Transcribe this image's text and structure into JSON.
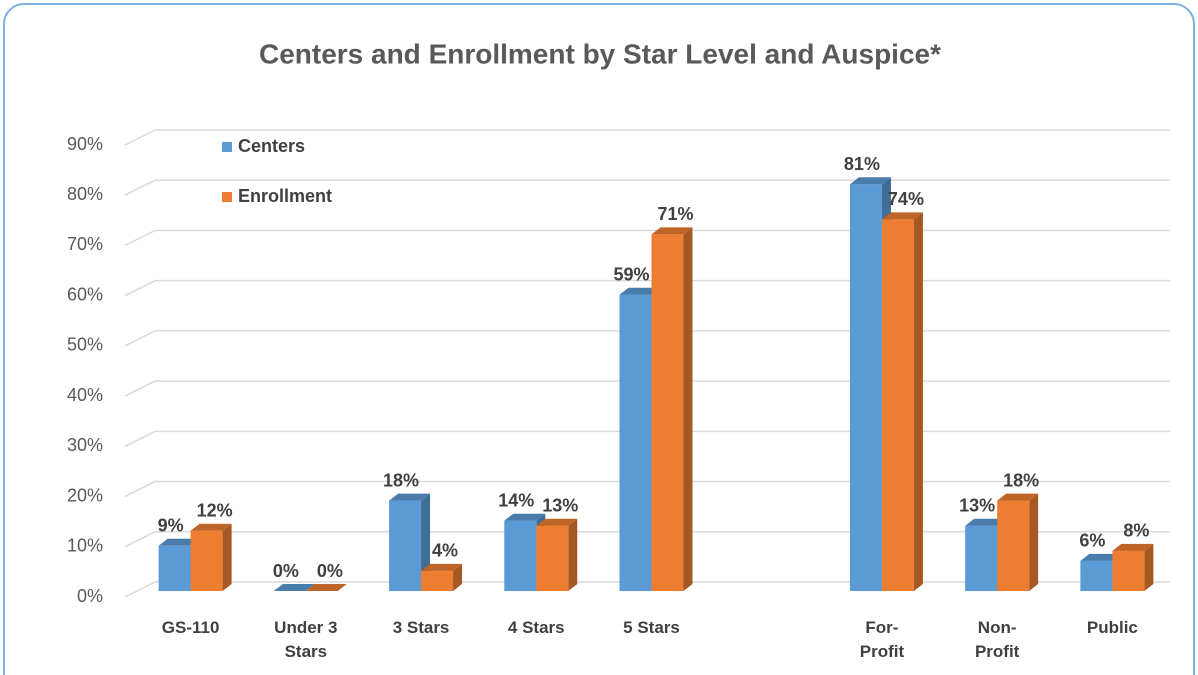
{
  "chart_data": {
    "type": "bar",
    "title": "Centers and Enrollment by Star Level and Auspice*",
    "categories": [
      "GS-110",
      "Under 3 Stars",
      "3 Stars",
      "4 Stars",
      "5 Stars",
      null,
      "For-Profit",
      "Non-Profit",
      "Public"
    ],
    "series": [
      {
        "name": "Centers",
        "color": "#5b9bd5",
        "values": [
          9,
          0,
          18,
          14,
          59,
          null,
          81,
          13,
          6
        ],
        "value_labels": [
          "9%",
          "0%",
          "18%",
          "14%",
          "59%",
          null,
          "81%",
          "13%",
          "6%"
        ]
      },
      {
        "name": "Enrollment",
        "color": "#ed7d31",
        "values": [
          12,
          0,
          4,
          13,
          71,
          null,
          74,
          18,
          8
        ],
        "value_labels": [
          "12%",
          "0%",
          "4%",
          "13%",
          "71%",
          null,
          "74%",
          "18%",
          "8%"
        ]
      }
    ],
    "ylim": [
      0,
      90
    ],
    "yticks": [
      {
        "value": 0,
        "label": "0%"
      },
      {
        "value": 10,
        "label": "10%"
      },
      {
        "value": 20,
        "label": "20%"
      },
      {
        "value": 30,
        "label": "30%"
      },
      {
        "value": 40,
        "label": "40%"
      },
      {
        "value": 50,
        "label": "50%"
      },
      {
        "value": 60,
        "label": "60%"
      },
      {
        "value": 70,
        "label": "70%"
      },
      {
        "value": 80,
        "label": "80%"
      },
      {
        "value": 90,
        "label": "90%"
      }
    ],
    "grid": true,
    "legend": "top-left"
  }
}
